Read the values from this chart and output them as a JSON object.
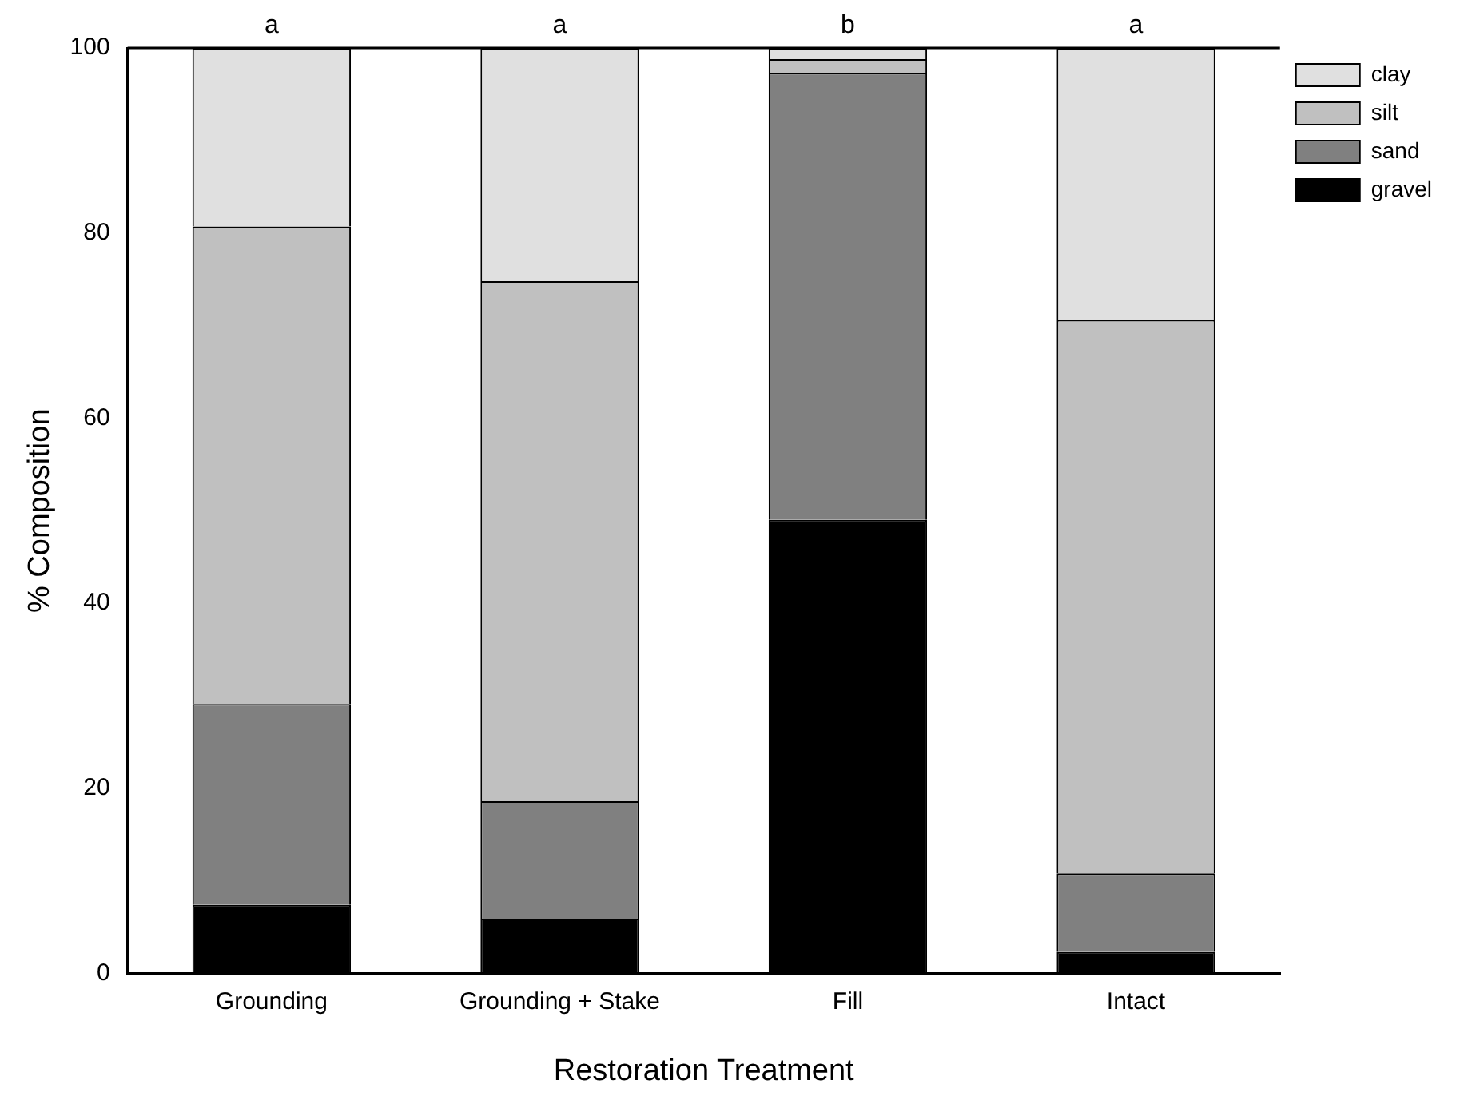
{
  "chart_data": {
    "type": "bar",
    "stacked": true,
    "xlabel": "Restoration Treatment",
    "ylabel": "% Composition",
    "categories": [
      "Grounding",
      "Grounding + Stake",
      "Fill",
      "Intact"
    ],
    "series": [
      {
        "name": "gravel",
        "color": "#000000",
        "values": [
          7.4,
          5.9,
          49.0,
          2.3
        ]
      },
      {
        "name": "sand",
        "color": "#808080",
        "values": [
          21.7,
          12.7,
          48.3,
          8.5
        ]
      },
      {
        "name": "silt",
        "color": "#c0c0c0",
        "values": [
          51.6,
          56.2,
          1.5,
          59.8
        ]
      },
      {
        "name": "clay",
        "color": "#e0e0e0",
        "values": [
          19.3,
          25.2,
          1.2,
          29.4
        ]
      }
    ],
    "ylim": [
      0,
      100
    ],
    "yticks": [
      0,
      20,
      40,
      60,
      80,
      100
    ],
    "grid": false,
    "legend": "top right",
    "annotations": [
      {
        "text": "a",
        "x": "Grounding",
        "y": 100
      },
      {
        "text": "a",
        "x": "Grounding + Stake",
        "y": 100
      },
      {
        "text": "b",
        "x": "Fill",
        "y": 100
      },
      {
        "text": "a",
        "x": "Intact",
        "y": 100
      }
    ]
  }
}
